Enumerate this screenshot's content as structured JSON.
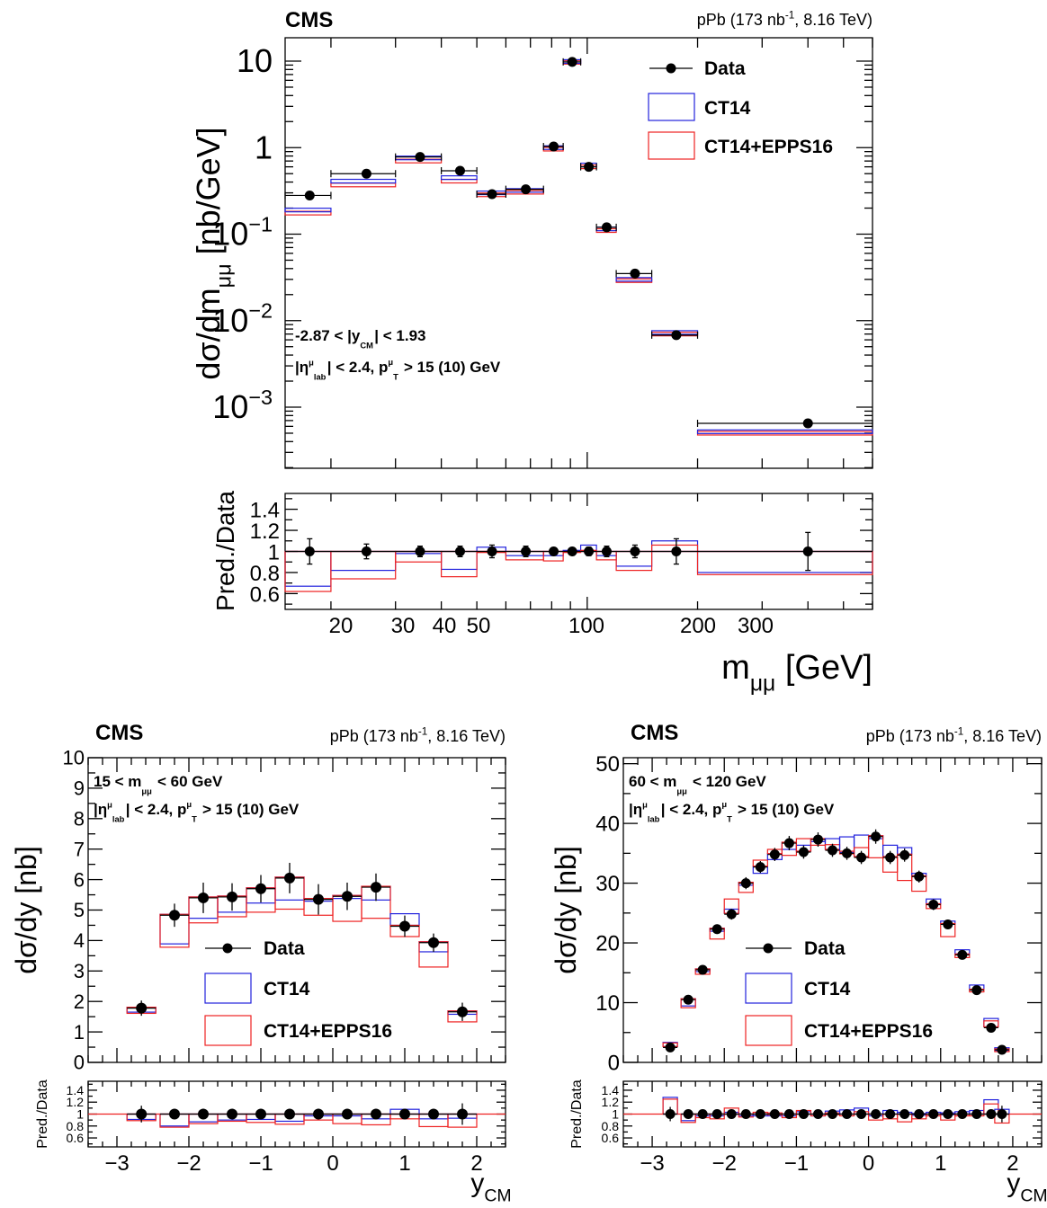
{
  "chart_data": [
    {
      "type": "scatter",
      "title": "CMS",
      "subtitle": "pPb (173 nb-1, 8.16 TeV)",
      "xlabel": "m_μμ [GeV]",
      "ylabel": "dσ/dm_μμ [nb/GeV]",
      "xscale": "log",
      "yscale": "log",
      "xlim": [
        15,
        600
      ],
      "ylim": [
        0.0002,
        20
      ],
      "y_tick_labels": [
        "10^-3",
        "10^-2",
        "10^-1",
        "1",
        "10"
      ],
      "x_tick_labels": [
        "20",
        "30",
        "40",
        "50",
        "100",
        "200",
        "300"
      ],
      "annotations": [
        "-2.87 < |y_CM| < 1.93",
        "|η^μ_lab| < 2.4, p^μ_T > 15 (10) GeV"
      ],
      "legend": [
        "Data",
        "CT14",
        "CT14+EPPS16"
      ],
      "legend_position": "top-right",
      "bins": [
        [
          15,
          20
        ],
        [
          20,
          30
        ],
        [
          30,
          40
        ],
        [
          40,
          50
        ],
        [
          50,
          60
        ],
        [
          60,
          76
        ],
        [
          76,
          86
        ],
        [
          86,
          96
        ],
        [
          96,
          106
        ],
        [
          106,
          120
        ],
        [
          120,
          150
        ],
        [
          150,
          200
        ],
        [
          200,
          600
        ]
      ],
      "series": [
        {
          "name": "Data",
          "x": [
            17.5,
            25,
            35,
            45,
            55,
            68,
            81,
            91,
            101,
            113,
            135,
            175,
            400
          ],
          "values": [
            0.28,
            0.5,
            0.78,
            0.54,
            0.29,
            0.33,
            1.03,
            9.8,
            0.6,
            0.12,
            0.035,
            0.0068,
            0.00065
          ]
        },
        {
          "name": "CT14",
          "values": [
            0.19,
            0.41,
            0.76,
            0.45,
            0.3,
            0.32,
            1.0,
            9.9,
            0.63,
            0.115,
            0.03,
            0.0073,
            0.00052
          ]
        },
        {
          "name": "CT14+EPPS16",
          "values": [
            0.175,
            0.37,
            0.7,
            0.41,
            0.285,
            0.305,
            0.96,
            9.7,
            0.6,
            0.11,
            0.029,
            0.007,
            0.0005
          ]
        }
      ],
      "ratio": {
        "ylabel": "Pred./Data",
        "ylim": [
          0.45,
          1.55
        ],
        "y_tick_labels": [
          "0.6",
          "0.8",
          "1",
          "1.2",
          "1.4"
        ],
        "data_errors": [
          0.12,
          0.07,
          0.05,
          0.05,
          0.06,
          0.05,
          0.03,
          0.02,
          0.04,
          0.05,
          0.06,
          0.12,
          0.18
        ],
        "CT14": [
          0.67,
          0.82,
          0.98,
          0.83,
          1.04,
          0.96,
          0.96,
          1.01,
          1.06,
          0.96,
          0.86,
          1.1,
          0.8
        ],
        "CT14+EPPS16": [
          0.62,
          0.74,
          0.9,
          0.76,
          0.99,
          0.92,
          0.91,
          0.99,
          1.01,
          0.92,
          0.82,
          1.06,
          0.78
        ]
      }
    },
    {
      "type": "scatter",
      "title": "CMS",
      "subtitle": "pPb (173 nb-1, 8.16 TeV)",
      "xlabel": "y_CM",
      "ylabel": "dσ/dy [nb]",
      "xlim": [
        -3.4,
        2.4
      ],
      "ylim": [
        0,
        10
      ],
      "y_tick_labels": [
        "0",
        "1",
        "2",
        "3",
        "4",
        "5",
        "6",
        "7",
        "8",
        "9",
        "10"
      ],
      "x_tick_labels": [
        "−3",
        "−2",
        "−1",
        "0",
        "1",
        "2"
      ],
      "annotations": [
        "15 < m_μμ < 60 GeV",
        "|η^μ_lab| < 2.4, p^μ_T > 15 (10) GeV"
      ],
      "legend": [
        "Data",
        "CT14",
        "CT14+EPPS16"
      ],
      "legend_position": "bottom-center",
      "x": [
        -2.66,
        -2.2,
        -1.8,
        -1.4,
        -1.0,
        -0.6,
        -0.2,
        0.2,
        0.6,
        1.0,
        1.4,
        1.8
      ],
      "series": [
        {
          "name": "Data",
          "values": [
            1.78,
            4.83,
            5.4,
            5.43,
            5.7,
            6.05,
            5.35,
            5.45,
            5.75,
            4.47,
            3.93,
            1.66
          ],
          "errors": [
            0.25,
            0.38,
            0.5,
            0.45,
            0.45,
            0.5,
            0.5,
            0.45,
            0.45,
            0.35,
            0.3,
            0.3
          ]
        },
        {
          "name": "CT14",
          "values": [
            1.62,
            3.86,
            4.7,
            4.9,
            5.2,
            5.3,
            5.35,
            5.35,
            5.3,
            4.85,
            3.6,
            1.55
          ]
        },
        {
          "name": "CT14+EPPS16",
          "values": [
            1.58,
            3.75,
            4.55,
            4.75,
            4.9,
            5.0,
            4.8,
            4.6,
            4.7,
            4.1,
            3.1,
            1.3
          ]
        }
      ],
      "ratio": {
        "ylabel": "Pred./Data",
        "ylim": [
          0.45,
          1.55
        ],
        "y_tick_labels": [
          "0.6",
          "0.8",
          "1",
          "1.2",
          "1.4"
        ],
        "data_errors": [
          0.14,
          0.08,
          0.09,
          0.08,
          0.08,
          0.08,
          0.09,
          0.08,
          0.08,
          0.08,
          0.08,
          0.18
        ],
        "CT14": [
          0.91,
          0.8,
          0.87,
          0.9,
          0.91,
          0.88,
          1.0,
          0.98,
          0.92,
          1.08,
          0.92,
          0.93
        ],
        "CT14+EPPS16": [
          0.89,
          0.78,
          0.84,
          0.88,
          0.86,
          0.83,
          0.9,
          0.84,
          0.82,
          0.92,
          0.79,
          0.78
        ]
      }
    },
    {
      "type": "scatter",
      "title": "CMS",
      "subtitle": "pPb (173 nb-1, 8.16 TeV)",
      "xlabel": "y_CM",
      "ylabel": "dσ/dy [nb]",
      "xlim": [
        -3.4,
        2.4
      ],
      "ylim": [
        0,
        51
      ],
      "y_tick_labels": [
        "0",
        "10",
        "20",
        "30",
        "40",
        "50"
      ],
      "x_tick_labels": [
        "−3",
        "−2",
        "−1",
        "0",
        "1",
        "2"
      ],
      "annotations": [
        "60 < m_μμ < 120 GeV",
        "|η^μ_lab| < 2.4, p^μ_T > 15 (10) GeV"
      ],
      "legend": [
        "Data",
        "CT14",
        "CT14+EPPS16"
      ],
      "legend_position": "bottom-center",
      "x": [
        -2.75,
        -2.5,
        -2.3,
        -2.1,
        -1.9,
        -1.7,
        -1.5,
        -1.3,
        -1.1,
        -0.9,
        -0.7,
        -0.5,
        -0.3,
        -0.1,
        0.1,
        0.3,
        0.5,
        0.7,
        0.9,
        1.1,
        1.3,
        1.5,
        1.7,
        1.85
      ],
      "series": [
        {
          "name": "Data",
          "values": [
            2.5,
            10.5,
            15.5,
            22.3,
            24.8,
            30.0,
            32.7,
            34.8,
            36.7,
            35.2,
            37.3,
            35.5,
            35.0,
            34.3,
            37.8,
            34.3,
            34.7,
            31.1,
            26.4,
            23.1,
            18.0,
            12.1,
            5.8,
            2.1
          ],
          "errors": [
            0.4,
            0.5,
            0.6,
            0.8,
            0.9,
            1.0,
            1.0,
            1.1,
            1.2,
            1.1,
            1.2,
            1.1,
            1.1,
            1.1,
            1.2,
            1.1,
            1.1,
            1.0,
            0.9,
            0.8,
            0.7,
            0.5,
            0.4,
            0.3
          ]
        },
        {
          "name": "CT14",
          "values": [
            3.2,
            9.3,
            15.1,
            21.8,
            25.5,
            29.5,
            31.5,
            33.8,
            35.5,
            36.2,
            36.8,
            37.3,
            37.6,
            37.9,
            37.3,
            36.2,
            35.8,
            31.5,
            27.2,
            23.5,
            18.7,
            12.8,
            7.2,
            2.3
          ]
        },
        {
          "name": "CT14+EPPS16",
          "values": [
            3.1,
            9.0,
            14.6,
            20.5,
            27.2,
            28.3,
            33.7,
            35.5,
            34.5,
            37.3,
            36.2,
            36.3,
            35.2,
            35.8,
            34.1,
            31.7,
            30.3,
            28.5,
            25.6,
            20.9,
            17.4,
            11.9,
            6.8,
            1.8
          ]
        }
      ],
      "ratio": {
        "ylabel": "Pred./Data",
        "ylim": [
          0.45,
          1.55
        ],
        "y_tick_labels": [
          "0.6",
          "0.8",
          "1",
          "1.2",
          "1.4"
        ],
        "data_errors": [
          0.12,
          0.05,
          0.04,
          0.04,
          0.04,
          0.04,
          0.03,
          0.03,
          0.03,
          0.03,
          0.03,
          0.03,
          0.03,
          0.03,
          0.03,
          0.03,
          0.03,
          0.03,
          0.03,
          0.04,
          0.04,
          0.05,
          0.07,
          0.14
        ],
        "CT14": [
          1.28,
          0.89,
          0.98,
          0.98,
          1.03,
          0.98,
          0.97,
          0.97,
          0.97,
          1.04,
          0.99,
          1.05,
          1.07,
          1.1,
          0.99,
          1.06,
          1.03,
          1.01,
          1.03,
          1.02,
          1.04,
          1.06,
          1.24,
          1.08
        ],
        "CT14+EPPS16": [
          1.25,
          0.86,
          0.94,
          0.92,
          1.1,
          0.95,
          1.03,
          1.02,
          0.94,
          1.06,
          0.97,
          1.02,
          1.0,
          1.04,
          0.9,
          0.92,
          0.87,
          0.92,
          0.97,
          0.9,
          0.97,
          0.98,
          1.17,
          0.85
        ]
      }
    }
  ]
}
